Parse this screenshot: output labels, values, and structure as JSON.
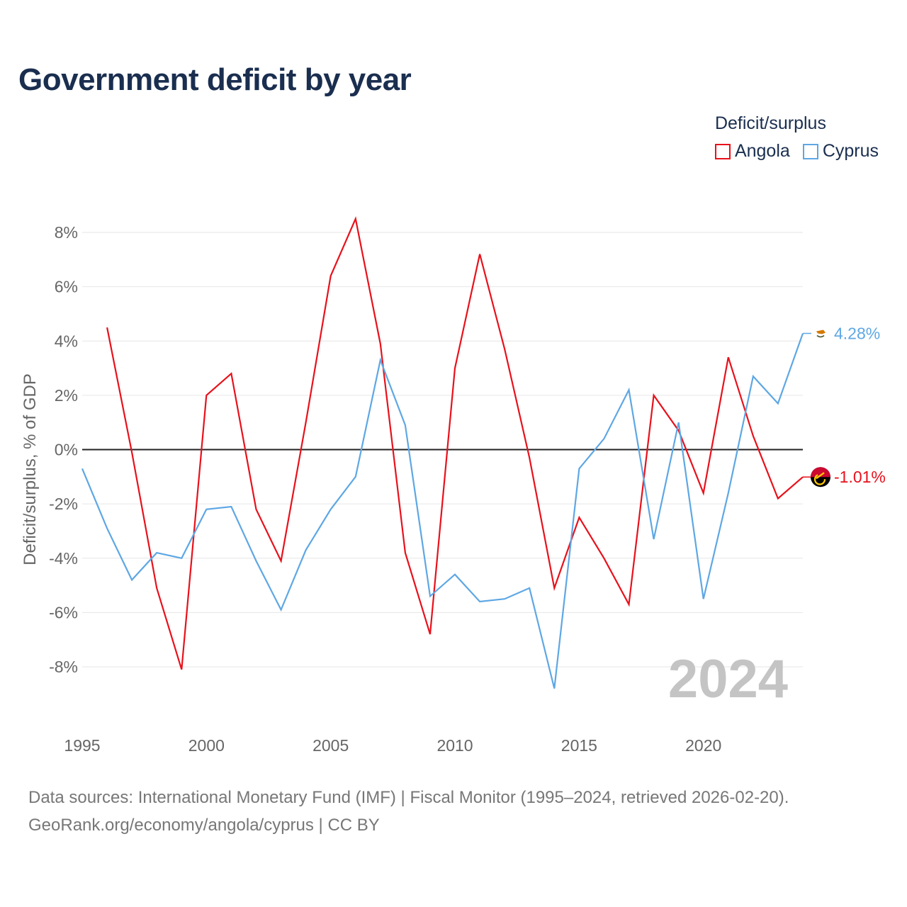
{
  "chart_data": {
    "type": "line",
    "title": "Government deficit by year",
    "ylabel": "Deficit/surplus, % of GDP",
    "xlabel": "",
    "xlim": [
      1995,
      2024
    ],
    "ylim": [
      -10,
      9
    ],
    "x_ticks": [
      1995,
      2000,
      2005,
      2010,
      2015,
      2020
    ],
    "x_tick_labels": [
      "1995",
      "2000",
      "2005",
      "2010",
      "2015",
      "2020"
    ],
    "y_ticks": [
      8,
      6,
      4,
      2,
      0,
      -2,
      -4,
      -6,
      -8
    ],
    "y_tick_labels": [
      "8%",
      "6%",
      "4%",
      "2%",
      "0%",
      "-2%",
      "-4%",
      "-6%",
      "-8%"
    ],
    "legend_title": "Deficit/surplus",
    "year_watermark": "2024",
    "series": [
      {
        "name": "Angola",
        "color": "#e8111b",
        "x": [
          1996,
          1997,
          1998,
          1999,
          2000,
          2001,
          2002,
          2003,
          2004,
          2005,
          2006,
          2007,
          2008,
          2009,
          2010,
          2011,
          2012,
          2013,
          2014,
          2015,
          2016,
          2017,
          2018,
          2019,
          2020,
          2021,
          2022,
          2023,
          2024
        ],
        "values": [
          4.5,
          -0.1,
          -5.1,
          -8.1,
          2.0,
          2.8,
          -2.2,
          -4.1,
          1.0,
          6.4,
          8.5,
          3.9,
          -3.8,
          -6.8,
          3.0,
          7.2,
          3.7,
          -0.3,
          -5.1,
          -2.5,
          -4.0,
          -5.7,
          2.0,
          0.7,
          -1.6,
          3.4,
          0.5,
          -1.8,
          -1.01
        ],
        "end_label": "-1.01%",
        "flag_icon": "angola-flag-icon"
      },
      {
        "name": "Cyprus",
        "color": "#5ea7e4",
        "x": [
          1995,
          1996,
          1997,
          1998,
          1999,
          2000,
          2001,
          2002,
          2003,
          2004,
          2005,
          2006,
          2007,
          2008,
          2009,
          2010,
          2011,
          2012,
          2013,
          2014,
          2015,
          2016,
          2017,
          2018,
          2019,
          2020,
          2021,
          2022,
          2023,
          2024
        ],
        "values": [
          -0.7,
          -2.9,
          -4.8,
          -3.8,
          -4.0,
          -2.2,
          -2.1,
          -4.1,
          -5.9,
          -3.7,
          -2.2,
          -1.0,
          3.3,
          0.9,
          -5.4,
          -4.6,
          -5.6,
          -5.5,
          -5.1,
          -8.8,
          -0.7,
          0.4,
          2.2,
          -3.3,
          1.0,
          -5.5,
          -1.6,
          2.7,
          1.7,
          4.28
        ],
        "end_label": "4.28%",
        "flag_icon": "cyprus-flag-icon"
      }
    ]
  },
  "source": {
    "line1": "Data sources: International Monetary Fund (IMF) | Fiscal Monitor (1995–2024, retrieved 2026-02-20).",
    "line2": "GeoRank.org/economy/angola/cyprus | CC BY"
  }
}
